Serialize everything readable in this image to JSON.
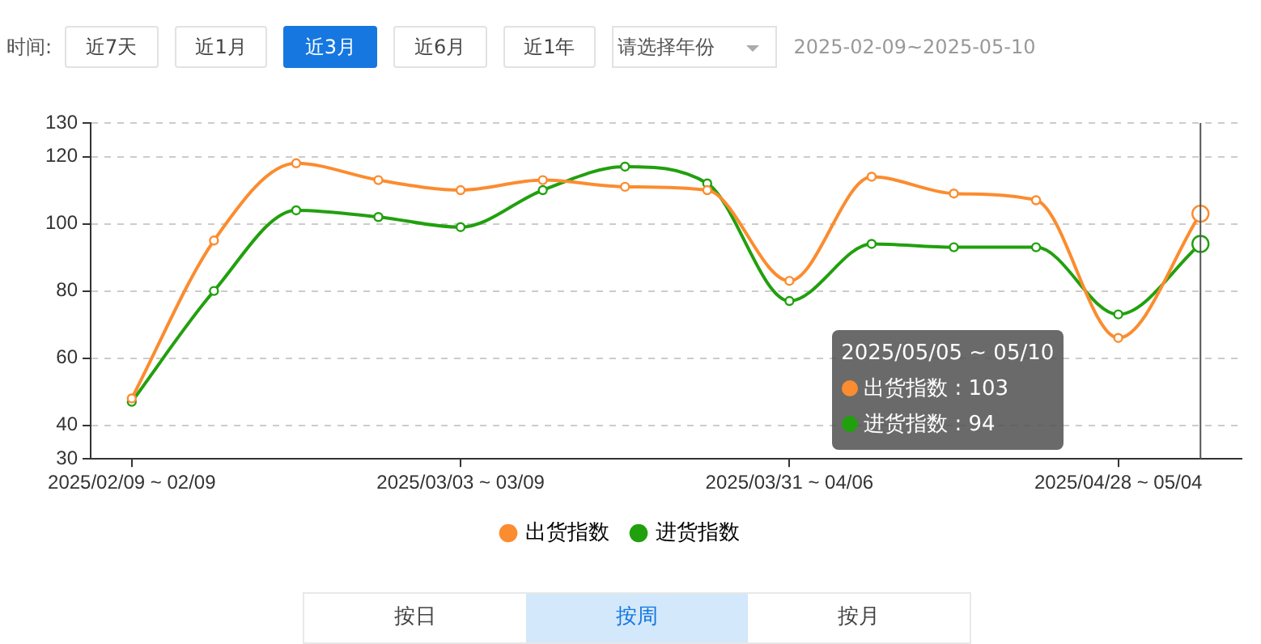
{
  "chart_data": {
    "type": "line",
    "categories": [
      "2025/02/09 ~ 02/09",
      null,
      null,
      null,
      "2025/03/03 ~ 03/09",
      null,
      null,
      null,
      "2025/03/31 ~ 04/06",
      null,
      null,
      null,
      "2025/04/28 ~ 05/04",
      null
    ],
    "series": [
      {
        "name": "出货指数",
        "color": "#fb8c2f",
        "values": [
          48,
          95,
          118,
          113,
          110,
          113,
          111,
          110,
          83,
          114,
          109,
          107,
          66,
          103
        ]
      },
      {
        "name": "进货指数",
        "color": "#21a00e",
        "values": [
          47,
          80,
          104,
          102,
          99,
          110,
          117,
          112,
          77,
          94,
          93,
          93,
          73,
          94
        ]
      }
    ],
    "ylim": [
      30,
      130
    ],
    "yticks": [
      30,
      40,
      60,
      80,
      100,
      120,
      130
    ],
    "grid": "y",
    "legend": "bottom",
    "marker": "circle",
    "annotations": [
      "时间:",
      "近7天",
      "近1月",
      "近3月",
      "近6月",
      "近1年",
      "请选择年份",
      "2025-02-09~2025-05-10",
      "按日",
      "按周",
      "按月",
      "2025/05/05 ~ 05/10",
      "出货指数 : 103",
      "进货指数 : 94"
    ]
  }
}
